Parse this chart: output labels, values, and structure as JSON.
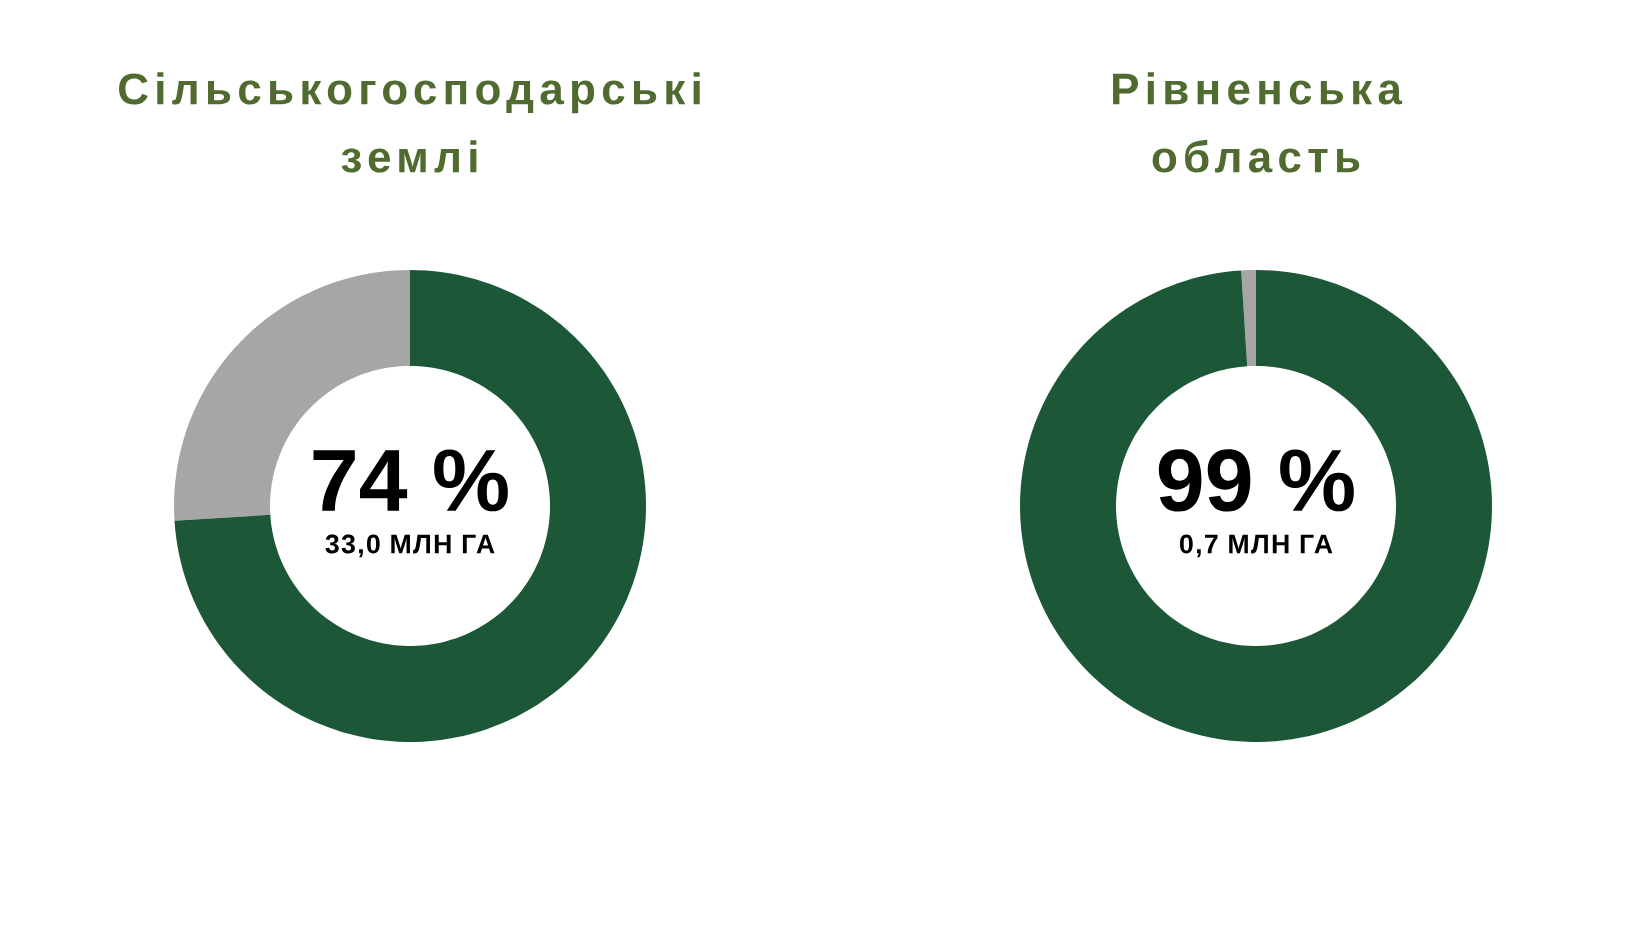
{
  "chart_data": [
    {
      "type": "donut",
      "title": "Сільськогосподарські землі",
      "categories": [
        null,
        null
      ],
      "values": [
        74,
        26
      ],
      "colors": [
        "#1c5738",
        "#a6a6a6"
      ],
      "annotations": [
        "74 %",
        "33,0 МЛН ГА"
      ]
    },
    {
      "type": "donut",
      "title": "Рівненська область",
      "categories": [
        null,
        null
      ],
      "values": [
        99,
        1
      ],
      "colors": [
        "#1c5738",
        "#a6a6a6"
      ],
      "annotations": [
        "99 %",
        "0,7 МЛН ГА"
      ]
    }
  ]
}
